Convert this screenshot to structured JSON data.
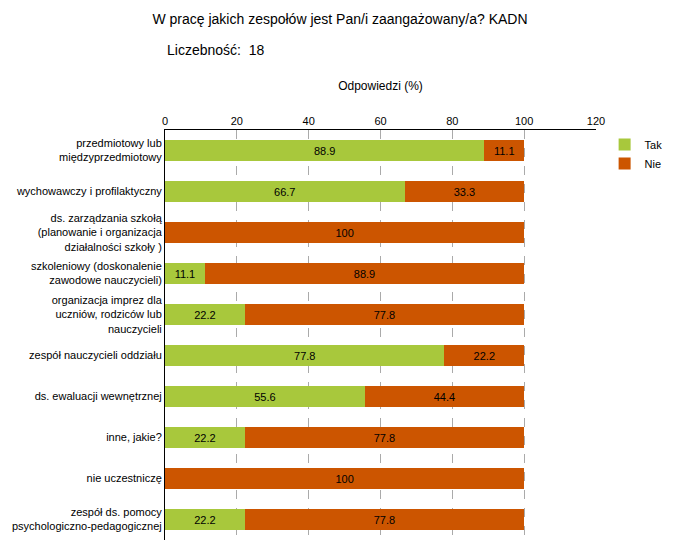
{
  "chart_data": {
    "type": "bar",
    "orientation": "horizontal",
    "stacked": true,
    "title": "W pracę jakich zespołów jest Pan/i zaangażowany/a? KADN",
    "subtitle": "Liczebność:  18",
    "xlabel": "Odpowiedzi (%)",
    "categories": [
      "przedmiotowy lub\nmiędzyprzedmiotowy",
      "wychowawczy i profilaktyczny",
      "ds. zarządzania szkołą\n(planowanie i organizacja\ndziałalności szkoły )",
      "szkoleniowy (doskonalenie\nzawodowe nauczycieli)",
      "organizacja imprez dla\nuczniów, rodziców lub\nnauczycieli",
      "zespół nauczycieli oddziału",
      "ds. ewaluacji wewnętrznej",
      "inne, jakie?",
      "nie uczestniczę",
      "zespół ds. pomocy\npsychologiczno-pedagogicznej"
    ],
    "series": [
      {
        "name": "Tak",
        "color": "#a8c83c",
        "values": [
          88.9,
          66.7,
          0.0,
          11.1,
          22.2,
          77.8,
          55.6,
          22.2,
          0.0,
          22.2
        ]
      },
      {
        "name": "Nie",
        "color": "#cc5500",
        "values": [
          11.1,
          33.3,
          100.0,
          88.9,
          77.8,
          22.2,
          44.4,
          77.8,
          100.0,
          77.8
        ]
      }
    ],
    "xlim": [
      0,
      120
    ],
    "xticks": [
      0,
      20,
      40,
      60,
      80,
      100,
      120
    ],
    "grid": true,
    "legend": "upper right",
    "data_labels": true
  }
}
